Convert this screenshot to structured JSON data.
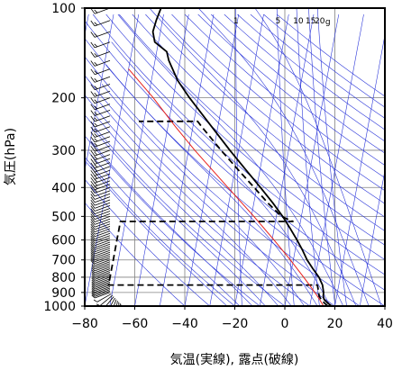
{
  "chart_data": {
    "type": "line",
    "subtype": "skew-T log-P thermodynamic diagram",
    "title": "",
    "xlabel": "気温(実線), 露点(破線)",
    "ylabel": "気圧(hPa)",
    "xlim": [
      -80,
      40
    ],
    "ylim": [
      1000,
      100
    ],
    "yscale": "log",
    "skew_per_decade": 22,
    "x_ticks": [
      "−80",
      "−60",
      "−40",
      "−20",
      "0",
      "20",
      "40"
    ],
    "x_tick_values": [
      -80,
      -60,
      -40,
      -20,
      0,
      20,
      40
    ],
    "y_ticks": [
      "100",
      "200",
      "300",
      "400",
      "500",
      "600",
      "700",
      "800",
      "900",
      "1000"
    ],
    "y_tick_values": [
      100,
      200,
      300,
      400,
      500,
      600,
      700,
      800,
      900,
      1000
    ],
    "grid": true,
    "mixing_ratio_labels": [
      "1",
      "5",
      "10",
      "15",
      "20",
      "g"
    ],
    "mixing_ratio_values": [
      1,
      5,
      10,
      15,
      20
    ],
    "series": [
      {
        "role": "temperature",
        "style": "solid",
        "color": "#000000",
        "pressure": [
          1000,
          975,
          950,
          925,
          900,
          850,
          800,
          750,
          700,
          650,
          600,
          550,
          500,
          450,
          400,
          350,
          300,
          250,
          200,
          175,
          150,
          140,
          130,
          120,
          110,
          100
        ],
        "values": [
          18.7,
          16.8,
          15.2,
          14.6,
          14.5,
          13.5,
          11.5,
          8.5,
          5.5,
          3.0,
          0.0,
          -3.5,
          -7.5,
          -12.5,
          -18.5,
          -25.5,
          -33.5,
          -42.5,
          -53.5,
          -59.5,
          -64.5,
          -66.0,
          -71.5,
          -73.0,
          -72.5,
          -71.5
        ]
      },
      {
        "role": "dewpoint",
        "style": "dashed",
        "color": "#000000",
        "pressure": [
          1000,
          975,
          950,
          925,
          900,
          850,
          850,
          800,
          750,
          700,
          650,
          600,
          550,
          520,
          520,
          500,
          450,
          400,
          350,
          300,
          250,
          240,
          240
        ],
        "values": [
          17.2,
          15.5,
          14.0,
          13.0,
          12.5,
          11.5,
          -72,
          -72,
          -72,
          -72,
          -72,
          -72,
          -72,
          -72,
          -3.0,
          -8.0,
          -14.5,
          -21.0,
          -28.5,
          -37.0,
          -46.5,
          -48.5,
          -72
        ]
      },
      {
        "role": "reference-parcel",
        "style": "solid",
        "color": "#e8201c",
        "pressure": [
          1000,
          950,
          900,
          850,
          800,
          700,
          600,
          500,
          400,
          300,
          250,
          200,
          160
        ],
        "values": [
          15.5,
          13.4,
          11.0,
          8.3,
          5.4,
          -1.2,
          -9.2,
          -19.0,
          -31.5,
          -47.5,
          -57.0,
          -68.0,
          -80.0
        ]
      }
    ],
    "wind_barbs": {
      "position": "left",
      "pressure": [
        1000,
        990,
        980,
        970,
        960,
        950,
        940,
        930,
        920,
        910,
        900,
        890,
        880,
        870,
        860,
        850,
        840,
        830,
        820,
        810,
        800,
        790,
        780,
        770,
        760,
        750,
        740,
        730,
        720,
        710,
        700,
        690,
        680,
        670,
        660,
        650,
        640,
        630,
        620,
        610,
        600,
        590,
        580,
        570,
        560,
        550,
        540,
        530,
        520,
        510,
        500,
        490,
        480,
        470,
        460,
        450,
        440,
        430,
        420,
        410,
        400,
        390,
        380,
        370,
        360,
        350,
        340,
        330,
        320,
        310,
        300,
        290,
        280,
        270,
        260,
        250,
        240,
        230,
        220,
        210,
        200,
        190,
        180,
        170,
        160,
        150,
        140,
        130,
        120,
        110,
        100
      ],
      "speed_kt": [
        10,
        10,
        10,
        10,
        10,
        10,
        10,
        5,
        5,
        5,
        5,
        5,
        5,
        5,
        5,
        5,
        5,
        5,
        5,
        5,
        5,
        5,
        5,
        5,
        5,
        5,
        5,
        5,
        5,
        5,
        10,
        10,
        10,
        10,
        10,
        10,
        10,
        10,
        10,
        10,
        10,
        10,
        10,
        10,
        10,
        10,
        10,
        10,
        10,
        10,
        10,
        10,
        10,
        10,
        10,
        10,
        10,
        10,
        10,
        10,
        15,
        15,
        15,
        15,
        15,
        15,
        15,
        15,
        15,
        15,
        15,
        15,
        15,
        15,
        15,
        15,
        15,
        15,
        15,
        15,
        15,
        15,
        15,
        15,
        15,
        15,
        15,
        15,
        15,
        15,
        15
      ],
      "direction_deg": [
        150,
        160,
        170,
        180,
        190,
        200,
        210,
        220,
        230,
        240,
        250,
        250,
        250,
        250,
        250,
        250,
        250,
        250,
        250,
        250,
        250,
        250,
        250,
        250,
        250,
        250,
        250,
        250,
        250,
        250,
        250,
        250,
        250,
        250,
        250,
        250,
        250,
        250,
        250,
        250,
        250,
        250,
        250,
        250,
        250,
        250,
        250,
        250,
        250,
        250,
        250,
        250,
        250,
        250,
        250,
        250,
        250,
        250,
        250,
        250,
        250,
        250,
        250,
        250,
        250,
        250,
        250,
        250,
        250,
        250,
        250,
        250,
        250,
        250,
        250,
        250,
        250,
        250,
        250,
        250,
        250,
        250,
        250,
        250,
        250,
        250,
        250,
        250,
        250,
        250,
        250
      ]
    }
  }
}
